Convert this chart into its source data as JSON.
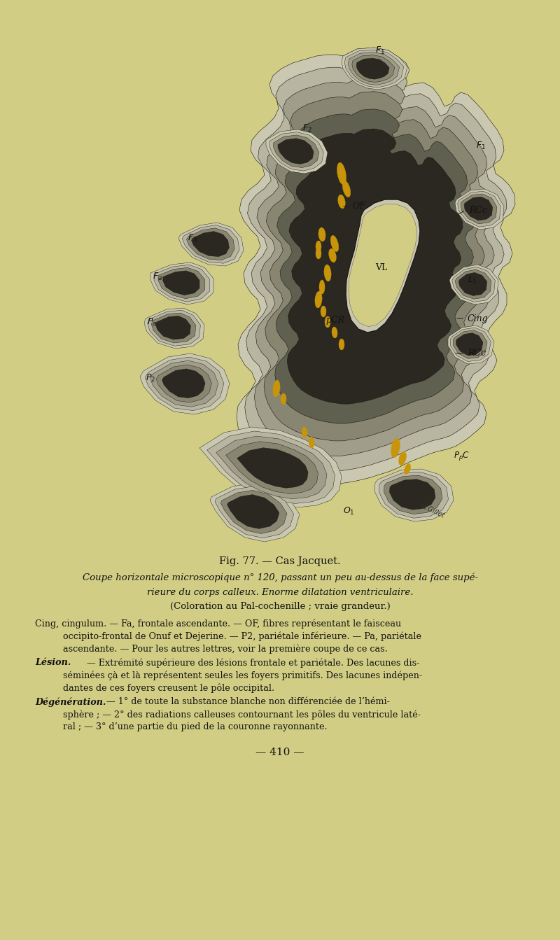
{
  "page_bg": "#d2cd84",
  "brain_bg": "#d2cd84",
  "fig_caption": "Fig. 77. — Cas Jacquet.",
  "subtitle_italic1": "Coupe horizontale microscopique ",
  "subtitle_bold": "n° 120",
  "subtitle_italic2": ", passant un peu au-dessus de la face supé-",
  "subtitle_line2": "rieure du corps calleux. Enorme dilatation ventriculaire.",
  "subtitle_line3": "(Coloration au Pal-cochenille ; vraie grandeur.)",
  "para1_line1": "Cing, cingulum. — Fa, frontale ascendante. — OF, fibres représentant le faisceau",
  "para1_line2": "occipito-frontal de Onuf et Dejerine. — P2, pariétale inférieure. — Pa, pariétale",
  "para1_line3": "ascendante. — Pour les autres lettres, voir la première coupe de ce cas.",
  "lesion_label": "Lésion.",
  "lesion_line1": " — Extrémité supérieure des lésions frontale et pariétale. Des lacunes dis-",
  "lesion_line2": "séminées çà et là représentent seules les foyers primitifs. Des lacunes indépen-",
  "lesion_line3": "dantes de ces foyers creusent le pôle occipital.",
  "degen_label": "Dégénération.",
  "degen_line1": " — 1° de toute la substance blanche non différenciée de l’hémi-",
  "degen_line2": "sphère ; — 2° des radiations calleuses contournant les pôles du ventricule laté-",
  "degen_line3": "ral ; — 3° d’une partie du pied de la couronne rayonnante.",
  "page_number": "— 410 —",
  "c_bg": "#d2cd84",
  "c_outer1": "#cac8b0",
  "c_outer2": "#b8b5a0",
  "c_mid1": "#a09d8a",
  "c_mid2": "#888570",
  "c_inner": "#606050",
  "c_dark": "#2a2820",
  "c_vent": "#c8c5b0",
  "c_lesion": "#c8950a",
  "c_line": "#1a1810"
}
